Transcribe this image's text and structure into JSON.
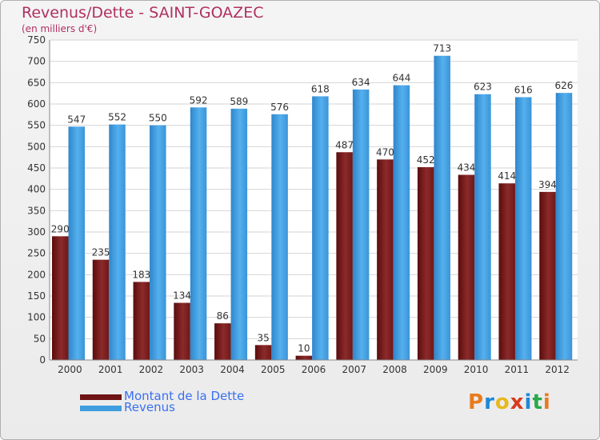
{
  "chart_data": {
    "type": "bar",
    "title": "Revenus/Dette - SAINT-GOAZEC",
    "subtitle": "(en milliers d'€)",
    "categories": [
      "2000",
      "2001",
      "2002",
      "2003",
      "2004",
      "2005",
      "2006",
      "2007",
      "2008",
      "2009",
      "2010",
      "2011",
      "2012"
    ],
    "series": [
      {
        "name": "Montant de la Dette",
        "color": "#7a1a1a",
        "values": [
          290,
          235,
          183,
          134,
          86,
          35,
          10,
          487,
          470,
          452,
          434,
          414,
          394
        ]
      },
      {
        "name": "Revenus",
        "color": "#3f9de0",
        "values": [
          547,
          552,
          550,
          592,
          589,
          576,
          618,
          634,
          644,
          713,
          623,
          616,
          626
        ]
      }
    ],
    "ylim": [
      0,
      750
    ],
    "yticks": [
      0,
      50,
      100,
      150,
      200,
      250,
      300,
      350,
      400,
      450,
      500,
      550,
      600,
      650,
      700,
      750
    ],
    "grid": true,
    "legend_position": "bottom-left"
  },
  "logo": {
    "text": "Proxiti",
    "colors": [
      "#e87b1e",
      "#1e88d8",
      "#e8b81e",
      "#d83a1e",
      "#1e88d8",
      "#2aa84a",
      "#e87b1e"
    ]
  }
}
